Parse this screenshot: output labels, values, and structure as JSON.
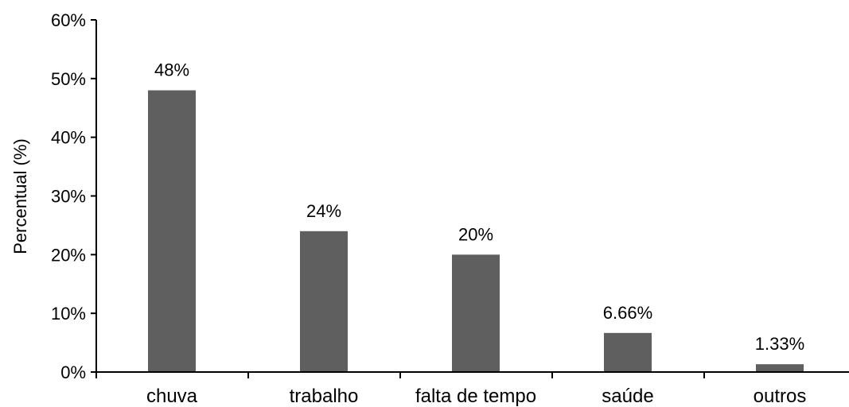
{
  "chart_data": {
    "type": "bar",
    "categories": [
      "chuva",
      "trabalho",
      "falta de tempo",
      "saúde",
      "outros"
    ],
    "values": [
      48,
      24,
      20,
      6.66,
      1.33
    ],
    "data_labels": [
      "48%",
      "24%",
      "20%",
      "6.66%",
      "1.33%"
    ],
    "ylabel": "Percentual (%)",
    "xlabel": "",
    "ylim": [
      0,
      60
    ],
    "yticks": [
      0,
      10,
      20,
      30,
      40,
      50,
      60
    ],
    "ytick_labels": [
      "0%",
      "10%",
      "20%",
      "30%",
      "40%",
      "50%",
      "60%"
    ],
    "grid": false,
    "legend": "none",
    "bar_color": "#5f5f5f"
  }
}
